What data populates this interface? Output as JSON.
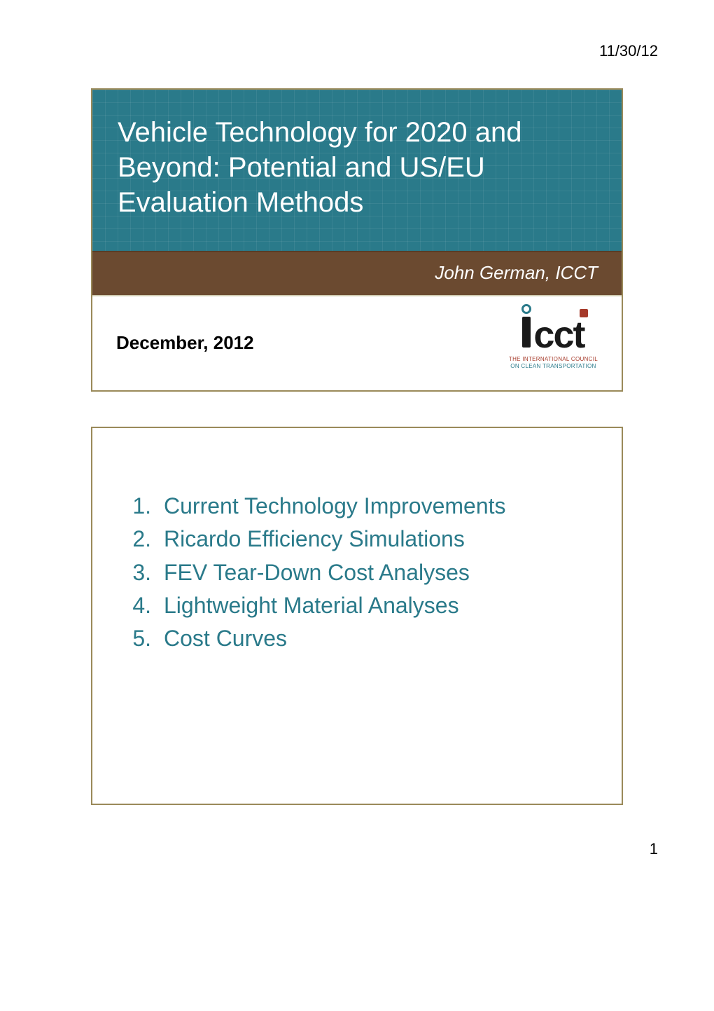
{
  "header": {
    "date": "11/30/12"
  },
  "slide1": {
    "title": "Vehicle Technology for 2020 and Beyond: Potential and US/EU Evaluation Methods",
    "author": "John German, ICCT",
    "date": "December, 2012",
    "logo": {
      "text": "icct",
      "tagline1": "THE INTERNATIONAL COUNCIL",
      "tagline2": "ON CLEAN TRANSPORTATION"
    },
    "colors": {
      "title_band_bg": "#2a7a8a",
      "author_band_bg": "#6b4a30",
      "border": "#9a8a5a",
      "title_text": "#ffffff",
      "author_text": "#ffffff"
    }
  },
  "slide2": {
    "items": [
      {
        "n": "1.",
        "text": "Current Technology Improvements"
      },
      {
        "n": "2.",
        "text": "Ricardo Efficiency Simulations"
      },
      {
        "n": "3.",
        "text": "FEV Tear-Down Cost Analyses"
      },
      {
        "n": "4.",
        "text": "Lightweight Material Analyses"
      },
      {
        "n": "5.",
        "text": "Cost Curves"
      }
    ],
    "text_color": "#2a7a8a",
    "font_size": 32
  },
  "footer": {
    "page": "1"
  }
}
